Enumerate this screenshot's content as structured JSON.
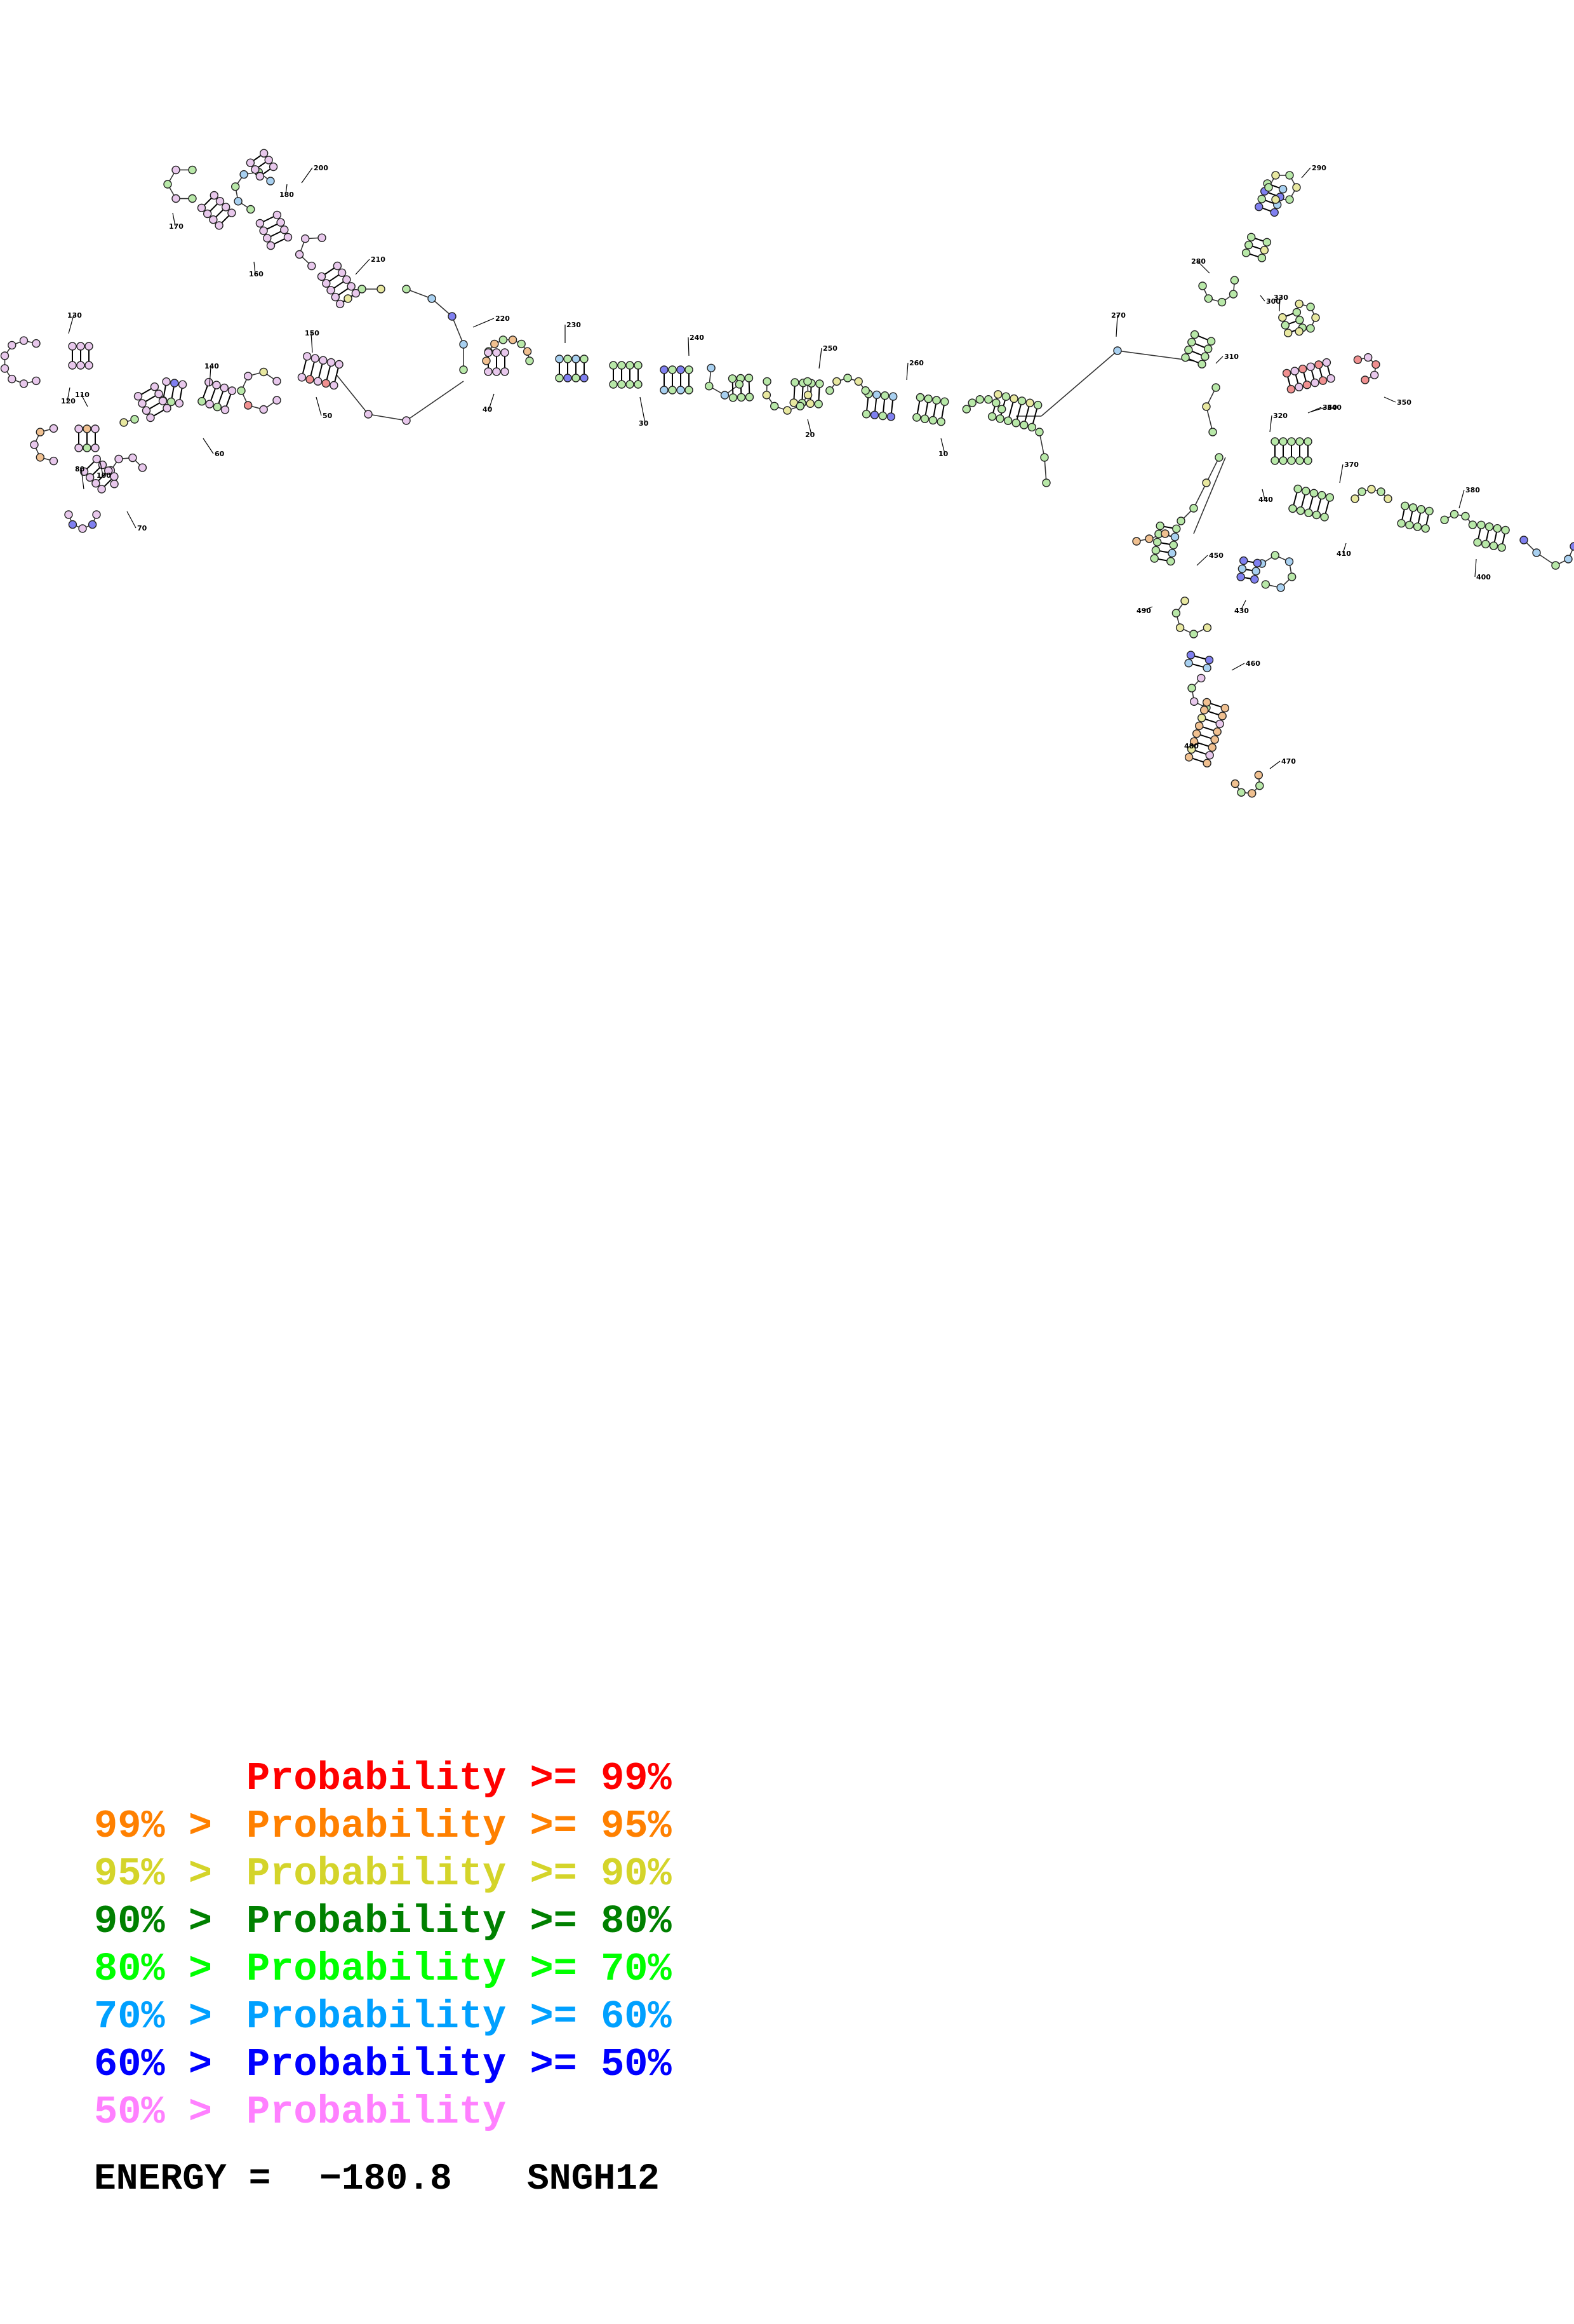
{
  "legend": [
    {
      "prefix": "",
      "text": "Probability >= 99%",
      "color": "#ff0000"
    },
    {
      "prefix": "99% >",
      "text": "Probability >= 95%",
      "color": "#ff8000"
    },
    {
      "prefix": "95% >",
      "text": "Probability >= 90%",
      "color": "#d4d42a"
    },
    {
      "prefix": "90% >",
      "text": "Probability >= 80%",
      "color": "#008000"
    },
    {
      "prefix": "80% >",
      "text": "Probability >= 70%",
      "color": "#00ff00"
    },
    {
      "prefix": "70% >",
      "text": "Probability >= 60%",
      "color": "#00a0ff"
    },
    {
      "prefix": "60% >",
      "text": "Probability >= 50%",
      "color": "#0000ff"
    },
    {
      "prefix": "50% >",
      "text": "Probability",
      "color": "#ff80ff"
    }
  ],
  "energy": {
    "label": "ENERGY = ",
    "value": "−180.8",
    "name": "SNGH12"
  },
  "position_labels": [
    "10",
    "20",
    "30",
    "40",
    "50",
    "60",
    "70",
    "80",
    "100",
    "110",
    "120",
    "130",
    "140",
    "150",
    "160",
    "170",
    "180",
    "200",
    "210",
    "220",
    "230",
    "240",
    "250",
    "260",
    "270",
    "280",
    "290",
    "300",
    "310",
    "320",
    "330",
    "340",
    "350",
    "360",
    "370",
    "380",
    "400",
    "410",
    "430",
    "440",
    "450",
    "460",
    "470",
    "480",
    "490"
  ],
  "nucleotide_fill_colors": {
    "pink": "#e8c8ec",
    "green": "#b8e8a8",
    "lightblue": "#a8d0f0",
    "blue": "#8080f0",
    "yellow": "#e8e8a0",
    "orange": "#f0c090",
    "red": "#f09090"
  }
}
